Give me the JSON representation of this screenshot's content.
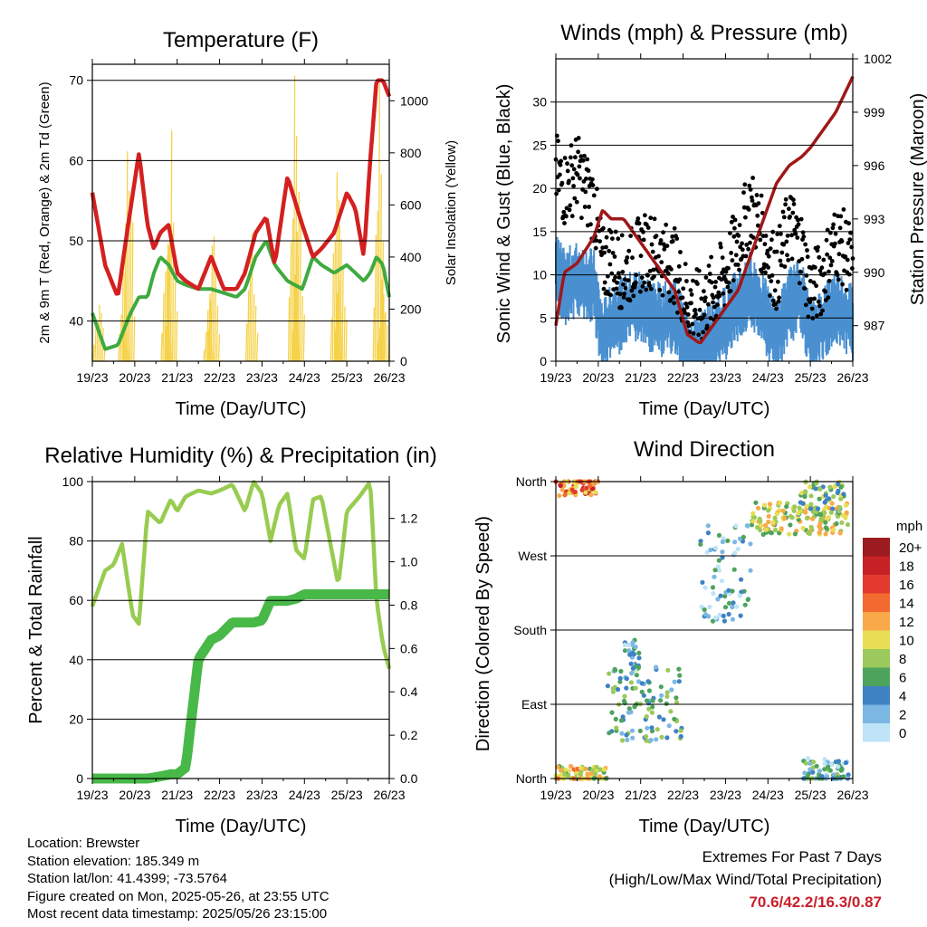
{
  "colors": {
    "temp": "#d42020",
    "dewpoint": "#3faa3f",
    "solar": "#f5d24a",
    "sonic_wind": "#4a90d0",
    "gust": "#000000",
    "pressure": "#a01818",
    "rh": "#98cc50",
    "rain": "#48b848",
    "extremes_text": "#c8202a"
  },
  "x_ticks": [
    "19/23",
    "20/23",
    "21/23",
    "22/23",
    "23/23",
    "24/23",
    "25/23",
    "26/23"
  ],
  "x_label": "Time (Day/UTC)",
  "temperature": {
    "title": "Temperature (F)",
    "ylabel_left": "2m & 9m T (Red, Orange) & 2m Td (Green)",
    "ylabel_right": "Solar Insolation (Yellow)",
    "left_ticks": [
      "40",
      "50",
      "60",
      "70"
    ],
    "right_ticks": [
      "0",
      "200",
      "400",
      "600",
      "800",
      "1000"
    ]
  },
  "winds": {
    "title": "Winds (mph) & Pressure (mb)",
    "ylabel_left": "Sonic Wind & Gust (Blue, Black)",
    "ylabel_right": "Station Pressure (Maroon)",
    "left_ticks": [
      "0",
      "5",
      "10",
      "15",
      "20",
      "25",
      "30"
    ],
    "right_ticks": [
      "987",
      "990",
      "993",
      "996",
      "999",
      "1002"
    ]
  },
  "humidity": {
    "title": "Relative Humidity (%) & Precipitation (in)",
    "ylabel_left": "Percent & Total Rainfall",
    "left_ticks": [
      "0",
      "20",
      "40",
      "60",
      "80",
      "100"
    ],
    "right_ticks": [
      "0.0",
      "0.2",
      "0.4",
      "0.6",
      "0.8",
      "1.0",
      "1.2"
    ]
  },
  "direction": {
    "title": "Wind Direction",
    "ylabel_left": "Direction (Colored By Speed)",
    "dir_ticks": [
      "North",
      "East",
      "South",
      "West",
      "North"
    ],
    "legend_title": "mph",
    "legend_labels": [
      "20+",
      "18",
      "16",
      "14",
      "12",
      "10",
      "8",
      "6",
      "4",
      "2",
      "0"
    ],
    "legend_colors": [
      "#9b1b1e",
      "#c62226",
      "#e23b2d",
      "#f26a30",
      "#f9a94a",
      "#e7de55",
      "#9cc95b",
      "#4ea35d",
      "#3e82c4",
      "#7cb7e4",
      "#bfe3f7"
    ]
  },
  "info": {
    "location": "Location: Brewster",
    "elevation": "Station elevation: 185.349 m",
    "latlon": "Station lat/lon: 41.4399; -73.5764",
    "created": "Figure created on Mon, 2025-05-26, at 23:55 UTC",
    "recent": "Most recent data timestamp: 2025/05/26 23:15:00"
  },
  "extremes": {
    "title": "Extremes For Past 7 Days",
    "subtitle": "(High/Low/Max Wind/Total Precipitation)",
    "values": "70.6/42.2/16.3/0.87"
  },
  "chart_data": [
    {
      "type": "line",
      "title": "Temperature (F)",
      "xlabel": "Time (Day/UTC)",
      "ylabel": "2m & 9m T (Red, Orange) & 2m Td (Green)",
      "ylabel_right": "Solar Insolation (Yellow)",
      "ylim": [
        35,
        72
      ],
      "ylim_right": [
        0,
        1140
      ],
      "x_days": [
        0,
        0.3,
        0.6,
        0.9,
        1.1,
        1.3,
        1.45,
        1.6,
        1.8,
        2.0,
        2.2,
        2.5,
        2.8,
        3.1,
        3.4,
        3.6,
        3.85,
        4.1,
        4.3,
        4.6,
        4.95,
        5.2,
        5.4,
        5.7,
        6.0,
        6.2,
        6.4,
        6.55,
        6.7,
        6.85,
        7.0
      ],
      "series": [
        {
          "name": "2m & 9m T",
          "values": [
            56,
            47,
            43,
            54,
            61,
            52,
            49,
            51,
            52,
            46,
            45,
            44,
            48,
            44,
            44,
            46,
            51,
            53,
            47,
            58,
            52,
            48,
            49,
            51,
            56,
            54,
            48,
            60,
            70,
            70,
            68
          ]
        },
        {
          "name": "2m Td",
          "values": [
            41,
            36.5,
            37,
            41,
            43,
            43,
            46,
            48,
            47,
            45,
            44.5,
            44,
            44,
            43.5,
            43,
            44,
            48,
            50,
            47,
            45,
            44,
            48,
            47,
            46,
            47,
            46,
            45,
            46,
            48,
            47,
            43
          ]
        }
      ],
      "solar_days": [
        0.15,
        0.25,
        0.75,
        0.85,
        1.0,
        1.75,
        1.85,
        2.0,
        2.75,
        2.85,
        3.0,
        3.75,
        3.85,
        4.0,
        4.75,
        4.85,
        5.0,
        5.75,
        5.85,
        6.0,
        6.75,
        6.85
      ],
      "solar_values": [
        300,
        0,
        500,
        990,
        0,
        600,
        850,
        0,
        280,
        580,
        0,
        560,
        0,
        0,
        1100,
        700,
        0,
        980,
        700,
        0,
        1000,
        400
      ]
    },
    {
      "type": "line",
      "title": "Winds (mph) & Pressure (mb)",
      "xlabel": "Time (Day/UTC)",
      "ylabel": "Sonic Wind & Gust (Blue, Black)",
      "ylabel_right": "Station Pressure (Maroon)",
      "ylim": [
        0,
        35
      ],
      "ylim_right": [
        985,
        1002
      ],
      "x_days": [
        0,
        0.2,
        0.5,
        0.9,
        1.1,
        1.3,
        1.6,
        1.9,
        2.2,
        2.5,
        2.8,
        3.1,
        3.4,
        3.7,
        4.0,
        4.3,
        4.6,
        4.9,
        5.2,
        5.5,
        5.8,
        6.0,
        6.3,
        6.6,
        6.8,
        7.0
      ],
      "series": [
        {
          "name": "Sonic Wind",
          "values": [
            12,
            10,
            11,
            10,
            4,
            6,
            7,
            8,
            7,
            6,
            7,
            3,
            3,
            4,
            6,
            8,
            10,
            7,
            4,
            8,
            9,
            4,
            6,
            8,
            7,
            6
          ]
        },
        {
          "name": "Gust",
          "values": [
            22,
            20,
            22,
            18,
            11,
            12,
            10,
            12,
            13,
            12,
            11,
            7,
            6,
            8,
            10,
            14,
            18,
            14,
            10,
            16,
            13,
            8,
            10,
            14,
            13,
            11
          ]
        },
        {
          "name": "Station Pressure",
          "values": [
            987,
            990,
            990.5,
            992,
            993.5,
            993,
            993,
            992,
            991,
            990,
            989,
            986.5,
            986,
            987,
            988,
            989,
            991,
            993,
            995,
            996,
            996.5,
            997,
            998,
            999,
            1000,
            1001
          ]
        }
      ]
    },
    {
      "type": "line",
      "title": "Relative Humidity (%) & Precipitation (in)",
      "xlabel": "Time (Day/UTC)",
      "ylabel": "Percent & Total Rainfall",
      "ylim": [
        0,
        100
      ],
      "ylim_right": [
        0,
        1.37
      ],
      "x_days": [
        0,
        0.3,
        0.5,
        0.7,
        0.95,
        1.1,
        1.3,
        1.6,
        1.85,
        2.0,
        2.2,
        2.5,
        2.8,
        3.0,
        3.3,
        3.6,
        3.8,
        4.0,
        4.2,
        4.4,
        4.6,
        4.8,
        5.0,
        5.2,
        5.4,
        5.6,
        5.8,
        6.0,
        6.3,
        6.55,
        6.7,
        6.85,
        7.0
      ],
      "series": [
        {
          "name": "Relative Humidity",
          "values": [
            58,
            70,
            72,
            79,
            55,
            52,
            90,
            86,
            94,
            90,
            95,
            97,
            96,
            97,
            99,
            90,
            100,
            96,
            80,
            92,
            96,
            77,
            74,
            94,
            95,
            80,
            65,
            90,
            95,
            100,
            60,
            45,
            37
          ]
        },
        {
          "name": "Total Rainfall",
          "values": [
            0,
            0,
            0,
            0,
            0,
            0,
            0,
            0.01,
            0.02,
            0.02,
            0.05,
            0.55,
            0.64,
            0.66,
            0.72,
            0.72,
            0.72,
            0.73,
            0.82,
            0.82,
            0.82,
            0.83,
            0.85,
            0.85,
            0.85,
            0.85,
            0.85,
            0.85,
            0.85,
            0.85,
            0.85,
            0.85,
            0.85
          ]
        }
      ]
    },
    {
      "type": "scatter",
      "title": "Wind Direction",
      "xlabel": "Time (Day/UTC)",
      "ylabel": "Direction (Colored By Speed)",
      "ylim": [
        0,
        360
      ],
      "note": "scatter points colored by wind speed",
      "clusters": [
        {
          "day_start": 0.0,
          "day_end": 1.0,
          "dir_center": 355,
          "dir_spread": 12,
          "speed": 14
        },
        {
          "day_start": 0.0,
          "day_end": 1.2,
          "dir_center": 5,
          "dir_spread": 10,
          "speed": 10
        },
        {
          "day_start": 1.2,
          "day_end": 3.0,
          "dir_center": 90,
          "dir_spread": 45,
          "speed": 5
        },
        {
          "day_start": 1.6,
          "day_end": 2.0,
          "dir_center": 150,
          "dir_spread": 20,
          "speed": 3
        },
        {
          "day_start": 3.4,
          "day_end": 4.6,
          "dir_center": 250,
          "dir_spread": 60,
          "speed": 3
        },
        {
          "day_start": 4.6,
          "day_end": 6.9,
          "dir_center": 315,
          "dir_spread": 20,
          "speed": 9
        },
        {
          "day_start": 5.8,
          "day_end": 6.9,
          "dir_center": 10,
          "dir_spread": 15,
          "speed": 4
        },
        {
          "day_start": 5.7,
          "day_end": 6.8,
          "dir_center": 340,
          "dir_spread": 20,
          "speed": 7
        }
      ]
    }
  ]
}
